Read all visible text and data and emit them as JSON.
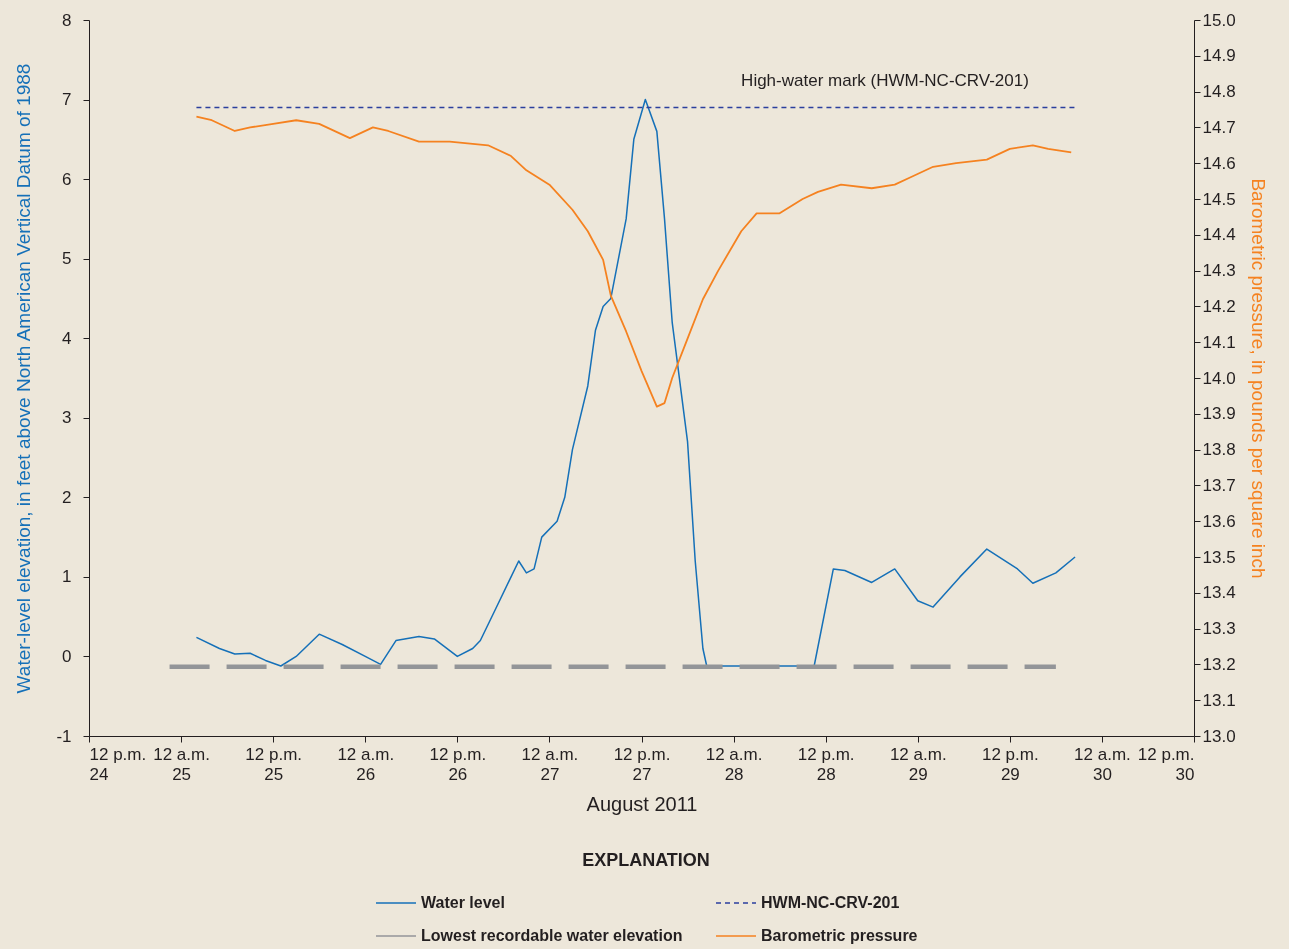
{
  "chart_data": {
    "type": "line",
    "xlabel": "August 2011",
    "ylabel": "Water-level elevation, in feet above North American Vertical Datum of 1988",
    "y2label": "Barometric pressure, in pounds per square inch",
    "legend_title": "EXPLANATION",
    "legend": "bottom",
    "xlim": [
      "2011-08-24T12:00",
      "2011-08-30T12:00"
    ],
    "xticks": [
      {
        "value": "2011-08-24T12:00",
        "label": "12 p.m.\n24"
      },
      {
        "value": "2011-08-25T00:00",
        "label": "12 a.m.\n25"
      },
      {
        "value": "2011-08-25T12:00",
        "label": "12 p.m.\n25"
      },
      {
        "value": "2011-08-26T00:00",
        "label": "12 a.m.\n26"
      },
      {
        "value": "2011-08-26T12:00",
        "label": "12 p.m.\n26"
      },
      {
        "value": "2011-08-27T00:00",
        "label": "12 a.m.\n27"
      },
      {
        "value": "2011-08-27T12:00",
        "label": "12 p.m.\n27"
      },
      {
        "value": "2011-08-28T00:00",
        "label": "12 a.m.\n28"
      },
      {
        "value": "2011-08-28T12:00",
        "label": "12 p.m.\n28"
      },
      {
        "value": "2011-08-29T00:00",
        "label": "12 a.m.\n29"
      },
      {
        "value": "2011-08-29T12:00",
        "label": "12 p.m.\n29"
      },
      {
        "value": "2011-08-30T00:00",
        "label": "12 a.m.\n30"
      },
      {
        "value": "2011-08-30T12:00",
        "label": "12 p.m.\n30"
      }
    ],
    "ylim": [
      -1,
      8
    ],
    "yticks": [
      -1,
      0,
      1,
      2,
      3,
      4,
      5,
      6,
      7,
      8
    ],
    "y2lim": [
      13,
      15
    ],
    "y2ticks": [
      {
        "value": 13,
        "label": "13.0"
      },
      13.1,
      13.2,
      13.3,
      13.4,
      13.5,
      13.6,
      13.7,
      13.8,
      13.9,
      {
        "value": 14,
        "label": "14.0"
      },
      14.1,
      14.2,
      14.3,
      14.4,
      14.5,
      14.6,
      14.7,
      14.8,
      14.9,
      {
        "value": 15,
        "label": "15.0"
      }
    ],
    "annotations": [
      "High-water mark (HWM-NC-CRV-201)"
    ],
    "series": [
      {
        "name": "Water level",
        "color": "#1570b8",
        "line_style": "solid",
        "x": [
          "2011-08-25T02:00",
          "2011-08-25T05:00",
          "2011-08-25T07:00",
          "2011-08-25T09:00",
          "2011-08-25T11:00",
          "2011-08-25T13:00",
          "2011-08-25T15:00",
          "2011-08-25T18:00",
          "2011-08-25T21:00",
          "2011-08-26T00:00",
          "2011-08-26T02:00",
          "2011-08-26T04:00",
          "2011-08-26T07:00",
          "2011-08-26T09:00",
          "2011-08-26T12:00",
          "2011-08-26T14:00",
          "2011-08-26T15:00",
          "2011-08-26T17:00",
          "2011-08-26T19:00",
          "2011-08-26T20:00",
          "2011-08-26T21:00",
          "2011-08-26T22:00",
          "2011-08-26T23:00",
          "2011-08-27T01:00",
          "2011-08-27T02:00",
          "2011-08-27T03:00",
          "2011-08-27T05:00",
          "2011-08-27T06:00",
          "2011-08-27T07:00",
          "2011-08-27T08:00",
          "2011-08-27T10:00",
          "2011-08-27T11:00",
          "2011-08-27T12:30",
          "2011-08-27T14:00",
          "2011-08-27T15:00",
          "2011-08-27T16:00",
          "2011-08-27T18:00",
          "2011-08-27T19:00",
          "2011-08-27T20:00",
          "2011-08-27T20:30",
          "2011-08-28T10:30",
          "2011-08-28T13:00",
          "2011-08-28T14:30",
          "2011-08-28T18:00",
          "2011-08-28T21:00",
          "2011-08-29T00:00",
          "2011-08-29T02:00",
          "2011-08-29T05:30",
          "2011-08-29T09:00",
          "2011-08-29T13:00",
          "2011-08-29T15:00",
          "2011-08-29T18:00",
          "2011-08-29T20:30"
        ],
        "values": [
          0.24,
          0.1,
          0.03,
          0.04,
          -0.05,
          -0.12,
          0.0,
          0.28,
          0.15,
          0.0,
          -0.1,
          0.2,
          0.25,
          0.22,
          0.0,
          0.1,
          0.2,
          0.6,
          1.0,
          1.2,
          1.05,
          1.1,
          1.5,
          1.7,
          2.0,
          2.6,
          3.4,
          4.1,
          4.4,
          4.5,
          5.5,
          6.5,
          7.0,
          6.6,
          5.5,
          4.2,
          2.7,
          1.2,
          0.1,
          -0.12,
          -0.12,
          1.1,
          1.08,
          0.93,
          1.1,
          0.7,
          0.62,
          1.0,
          1.35,
          1.1,
          0.92,
          1.05,
          1.25
        ]
      },
      {
        "name": "HWM-NC-CRV-201",
        "color": "#2b3f9e",
        "line_style": "dashed",
        "x": [
          "2011-08-25T02:00",
          "2011-08-29T20:30"
        ],
        "values": [
          6.9,
          6.9
        ]
      },
      {
        "name": "Lowest recordable water elevation",
        "color": "#939598",
        "line_style": "dashed",
        "x": [
          "2011-08-24T22:30",
          "2011-08-29T18:00"
        ],
        "values": [
          -0.13,
          -0.13
        ]
      },
      {
        "name": "Barometric pressure",
        "color": "#f58220",
        "line_style": "solid",
        "axis": "y2",
        "x": [
          "2011-08-25T02:00",
          "2011-08-25T04:00",
          "2011-08-25T07:00",
          "2011-08-25T09:00",
          "2011-08-25T12:00",
          "2011-08-25T15:00",
          "2011-08-25T18:00",
          "2011-08-25T22:00",
          "2011-08-26T01:00",
          "2011-08-26T03:00",
          "2011-08-26T07:00",
          "2011-08-26T11:00",
          "2011-08-26T16:00",
          "2011-08-26T19:00",
          "2011-08-26T21:00",
          "2011-08-27T00:00",
          "2011-08-27T03:00",
          "2011-08-27T05:00",
          "2011-08-27T07:00",
          "2011-08-27T08:00",
          "2011-08-27T10:00",
          "2011-08-27T12:00",
          "2011-08-27T14:00",
          "2011-08-27T15:00",
          "2011-08-27T16:00",
          "2011-08-27T18:00",
          "2011-08-27T20:00",
          "2011-08-27T22:00",
          "2011-08-28T01:00",
          "2011-08-28T03:00",
          "2011-08-28T06:00",
          "2011-08-28T09:00",
          "2011-08-28T11:00",
          "2011-08-28T14:00",
          "2011-08-28T18:00",
          "2011-08-28T21:00",
          "2011-08-28T23:00",
          "2011-08-29T02:00",
          "2011-08-29T05:00",
          "2011-08-29T09:00",
          "2011-08-29T12:00",
          "2011-08-29T15:00",
          "2011-08-29T17:00",
          "2011-08-29T20:00"
        ],
        "values": [
          14.73,
          14.72,
          14.69,
          14.7,
          14.71,
          14.72,
          14.71,
          14.67,
          14.7,
          14.69,
          14.66,
          14.66,
          14.65,
          14.62,
          14.58,
          14.54,
          14.47,
          14.41,
          14.33,
          14.23,
          14.13,
          14.02,
          13.92,
          13.93,
          14.0,
          14.11,
          14.22,
          14.3,
          14.41,
          14.46,
          14.46,
          14.5,
          14.52,
          14.54,
          14.53,
          14.54,
          14.56,
          14.59,
          14.6,
          14.61,
          14.64,
          14.65,
          14.64,
          14.63
        ]
      }
    ]
  }
}
